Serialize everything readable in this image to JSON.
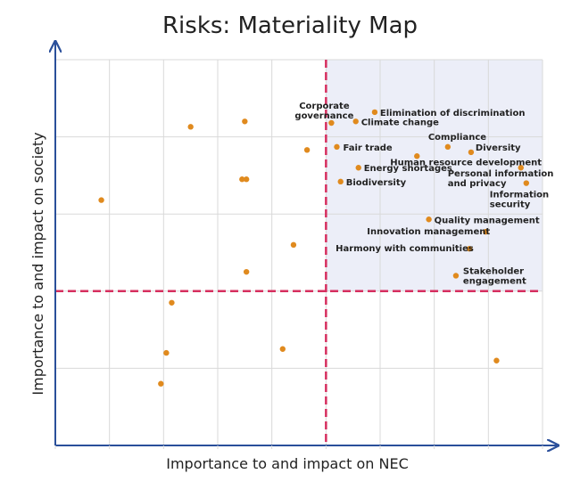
{
  "colors": {
    "point": "#e08a1e",
    "axis": "#2a4f9a",
    "threshold": "#d62f5f",
    "quadrant_fill": "#eceef8",
    "grid": "#d9d9d9"
  },
  "chart_data": {
    "type": "scatter",
    "title": "Risks: Materiality Map",
    "xlabel": "Importance to and impact on NEC",
    "ylabel": "Importance to and impact on society",
    "xlim": [
      0,
      9
    ],
    "ylim": [
      0,
      5
    ],
    "grid": true,
    "x_threshold": 5,
    "y_threshold": 2,
    "highlight_quadrant": "top-right",
    "points": [
      {
        "x": 0.85,
        "y": 3.18,
        "label": ""
      },
      {
        "x": 2.5,
        "y": 4.13,
        "label": ""
      },
      {
        "x": 3.5,
        "y": 4.2,
        "label": ""
      },
      {
        "x": 3.45,
        "y": 3.45,
        "label": ""
      },
      {
        "x": 3.53,
        "y": 3.45,
        "label": ""
      },
      {
        "x": 4.65,
        "y": 3.83,
        "label": ""
      },
      {
        "x": 4.4,
        "y": 2.6,
        "label": ""
      },
      {
        "x": 3.53,
        "y": 2.25,
        "label": ""
      },
      {
        "x": 2.15,
        "y": 1.85,
        "label": ""
      },
      {
        "x": 2.05,
        "y": 1.2,
        "label": ""
      },
      {
        "x": 1.95,
        "y": 0.8,
        "label": ""
      },
      {
        "x": 4.2,
        "y": 1.25,
        "label": ""
      },
      {
        "x": 8.15,
        "y": 1.1,
        "label": ""
      },
      {
        "x": 5.1,
        "y": 4.18,
        "label": "Corporate\ngovernance"
      },
      {
        "x": 5.55,
        "y": 4.2,
        "label": "Climate change"
      },
      {
        "x": 5.9,
        "y": 4.32,
        "label": "Elimination of discrimination"
      },
      {
        "x": 5.2,
        "y": 3.87,
        "label": "Fair trade"
      },
      {
        "x": 5.6,
        "y": 3.6,
        "label": "Energy shortages"
      },
      {
        "x": 5.27,
        "y": 3.42,
        "label": "Biodiversity"
      },
      {
        "x": 6.68,
        "y": 3.75,
        "label": "Human resource development"
      },
      {
        "x": 7.25,
        "y": 3.87,
        "label": "Compliance"
      },
      {
        "x": 7.68,
        "y": 3.8,
        "label": "Diversity"
      },
      {
        "x": 8.6,
        "y": 3.6,
        "label": "Personal information\nand privacy"
      },
      {
        "x": 8.7,
        "y": 3.4,
        "label": "Information\nsecurity"
      },
      {
        "x": 6.9,
        "y": 2.93,
        "label": "Quality management"
      },
      {
        "x": 7.95,
        "y": 2.77,
        "label": "Innovation management"
      },
      {
        "x": 7.65,
        "y": 2.55,
        "label": "Harmony with communities"
      },
      {
        "x": 7.4,
        "y": 2.2,
        "label": "Stakeholder\nengagement"
      }
    ]
  }
}
